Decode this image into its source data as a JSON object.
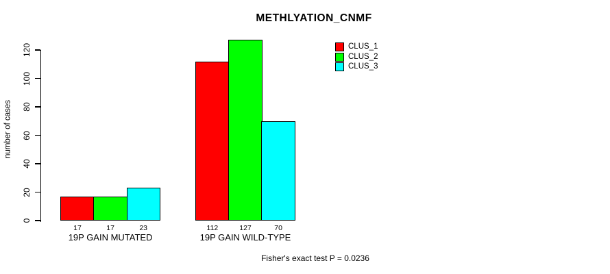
{
  "chart_data": {
    "type": "bar",
    "title": "METHLYATION_CNMF",
    "ylabel": "number of cases",
    "xlabel": "",
    "categories": [
      "19P GAIN MUTATED",
      "19P GAIN WILD-TYPE"
    ],
    "series": [
      {
        "name": "CLUS_1",
        "color": "#FF0000",
        "values": [
          17,
          112
        ]
      },
      {
        "name": "CLUS_2",
        "color": "#00FF00",
        "values": [
          17,
          127
        ]
      },
      {
        "name": "CLUS_3",
        "color": "#00FFFF",
        "values": [
          23,
          70
        ]
      }
    ],
    "bar_value_labels": [
      [
        17,
        17,
        23
      ],
      [
        112,
        127,
        70
      ]
    ],
    "yticks": [
      0,
      20,
      40,
      60,
      80,
      100,
      120
    ],
    "axis_range": [
      0,
      120
    ],
    "grid": false,
    "legend": {
      "position": "top-right",
      "entries": [
        "CLUS_1",
        "CLUS_2",
        "CLUS_3"
      ]
    },
    "annotation": "Fisher's exact test P = 0.0236"
  }
}
